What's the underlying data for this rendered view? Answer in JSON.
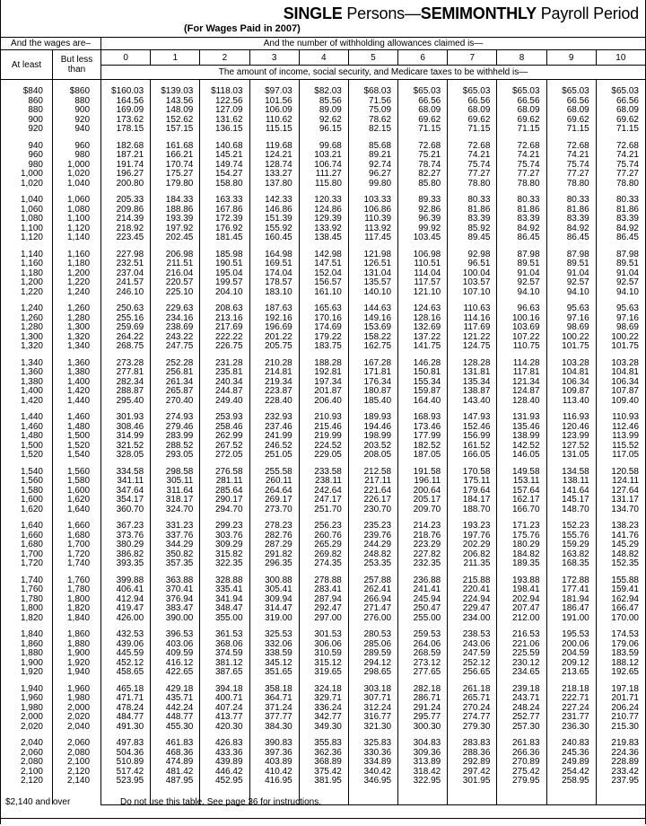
{
  "header": {
    "title_bold_1": "SINGLE",
    "title_plain_1": " Persons—",
    "title_bold_2": "SEMIMONTHLY",
    "title_plain_2": " Payroll Period",
    "subtitle": "(For Wages Paid in 2007)"
  },
  "table": {
    "wages_header": "And the wages are–",
    "allowances_header": "And the number of withholding allowances claimed is—",
    "at_least": "At least",
    "but_less_than": "But less than",
    "allowances": [
      "0",
      "1",
      "2",
      "3",
      "4",
      "5",
      "6",
      "7",
      "8",
      "9",
      "10"
    ],
    "amount_header": "The amount of income, social security, and Medicare taxes to be withheld is—",
    "rows": [
      [
        "$840",
        "$860",
        "$160.03",
        "$139.03",
        "$118.03",
        "$97.03",
        "$82.03",
        "$68.03",
        "$65.03",
        "$65.03",
        "$65.03",
        "$65.03",
        "$65.03"
      ],
      [
        "860",
        "880",
        "164.56",
        "143.56",
        "122.56",
        "101.56",
        "85.56",
        "71.56",
        "66.56",
        "66.56",
        "66.56",
        "66.56",
        "66.56"
      ],
      [
        "880",
        "900",
        "169.09",
        "148.09",
        "127.09",
        "106.09",
        "89.09",
        "75.09",
        "68.09",
        "68.09",
        "68.09",
        "68.09",
        "68.09"
      ],
      [
        "900",
        "920",
        "173.62",
        "152.62",
        "131.62",
        "110.62",
        "92.62",
        "78.62",
        "69.62",
        "69.62",
        "69.62",
        "69.62",
        "69.62"
      ],
      [
        "920",
        "940",
        "178.15",
        "157.15",
        "136.15",
        "115.15",
        "96.15",
        "82.15",
        "71.15",
        "71.15",
        "71.15",
        "71.15",
        "71.15"
      ],
      [
        "940",
        "960",
        "182.68",
        "161.68",
        "140.68",
        "119.68",
        "99.68",
        "85.68",
        "72.68",
        "72.68",
        "72.68",
        "72.68",
        "72.68"
      ],
      [
        "960",
        "980",
        "187.21",
        "166.21",
        "145.21",
        "124.21",
        "103.21",
        "89.21",
        "75.21",
        "74.21",
        "74.21",
        "74.21",
        "74.21"
      ],
      [
        "980",
        "1,000",
        "191.74",
        "170.74",
        "149.74",
        "128.74",
        "106.74",
        "92.74",
        "78.74",
        "75.74",
        "75.74",
        "75.74",
        "75.74"
      ],
      [
        "1,000",
        "1,020",
        "196.27",
        "175.27",
        "154.27",
        "133.27",
        "111.27",
        "96.27",
        "82.27",
        "77.27",
        "77.27",
        "77.27",
        "77.27"
      ],
      [
        "1,020",
        "1,040",
        "200.80",
        "179.80",
        "158.80",
        "137.80",
        "115.80",
        "99.80",
        "85.80",
        "78.80",
        "78.80",
        "78.80",
        "78.80"
      ],
      [
        "1,040",
        "1,060",
        "205.33",
        "184.33",
        "163.33",
        "142.33",
        "120.33",
        "103.33",
        "89.33",
        "80.33",
        "80.33",
        "80.33",
        "80.33"
      ],
      [
        "1,060",
        "1,080",
        "209.86",
        "188.86",
        "167.86",
        "146.86",
        "124.86",
        "106.86",
        "92.86",
        "81.86",
        "81.86",
        "81.86",
        "81.86"
      ],
      [
        "1,080",
        "1,100",
        "214.39",
        "193.39",
        "172.39",
        "151.39",
        "129.39",
        "110.39",
        "96.39",
        "83.39",
        "83.39",
        "83.39",
        "83.39"
      ],
      [
        "1,100",
        "1,120",
        "218.92",
        "197.92",
        "176.92",
        "155.92",
        "133.92",
        "113.92",
        "99.92",
        "85.92",
        "84.92",
        "84.92",
        "84.92"
      ],
      [
        "1,120",
        "1,140",
        "223.45",
        "202.45",
        "181.45",
        "160.45",
        "138.45",
        "117.45",
        "103.45",
        "89.45",
        "86.45",
        "86.45",
        "86.45"
      ],
      [
        "1,140",
        "1,160",
        "227.98",
        "206.98",
        "185.98",
        "164.98",
        "142.98",
        "121.98",
        "106.98",
        "92.98",
        "87.98",
        "87.98",
        "87.98"
      ],
      [
        "1,160",
        "1,180",
        "232.51",
        "211.51",
        "190.51",
        "169.51",
        "147.51",
        "126.51",
        "110.51",
        "96.51",
        "89.51",
        "89.51",
        "89.51"
      ],
      [
        "1,180",
        "1,200",
        "237.04",
        "216.04",
        "195.04",
        "174.04",
        "152.04",
        "131.04",
        "114.04",
        "100.04",
        "91.04",
        "91.04",
        "91.04"
      ],
      [
        "1,200",
        "1,220",
        "241.57",
        "220.57",
        "199.57",
        "178.57",
        "156.57",
        "135.57",
        "117.57",
        "103.57",
        "92.57",
        "92.57",
        "92.57"
      ],
      [
        "1,220",
        "1,240",
        "246.10",
        "225.10",
        "204.10",
        "183.10",
        "161.10",
        "140.10",
        "121.10",
        "107.10",
        "94.10",
        "94.10",
        "94.10"
      ],
      [
        "1,240",
        "1,260",
        "250.63",
        "229.63",
        "208.63",
        "187.63",
        "165.63",
        "144.63",
        "124.63",
        "110.63",
        "96.63",
        "95.63",
        "95.63"
      ],
      [
        "1,260",
        "1,280",
        "255.16",
        "234.16",
        "213.16",
        "192.16",
        "170.16",
        "149.16",
        "128.16",
        "114.16",
        "100.16",
        "97.16",
        "97.16"
      ],
      [
        "1,280",
        "1,300",
        "259.69",
        "238.69",
        "217.69",
        "196.69",
        "174.69",
        "153.69",
        "132.69",
        "117.69",
        "103.69",
        "98.69",
        "98.69"
      ],
      [
        "1,300",
        "1,320",
        "264.22",
        "243.22",
        "222.22",
        "201.22",
        "179.22",
        "158.22",
        "137.22",
        "121.22",
        "107.22",
        "100.22",
        "100.22"
      ],
      [
        "1,320",
        "1,340",
        "268.75",
        "247.75",
        "226.75",
        "205.75",
        "183.75",
        "162.75",
        "141.75",
        "124.75",
        "110.75",
        "101.75",
        "101.75"
      ],
      [
        "1,340",
        "1,360",
        "273.28",
        "252.28",
        "231.28",
        "210.28",
        "188.28",
        "167.28",
        "146.28",
        "128.28",
        "114.28",
        "103.28",
        "103.28"
      ],
      [
        "1,360",
        "1,380",
        "277.81",
        "256.81",
        "235.81",
        "214.81",
        "192.81",
        "171.81",
        "150.81",
        "131.81",
        "117.81",
        "104.81",
        "104.81"
      ],
      [
        "1,380",
        "1,400",
        "282.34",
        "261.34",
        "240.34",
        "219.34",
        "197.34",
        "176.34",
        "155.34",
        "135.34",
        "121.34",
        "106.34",
        "106.34"
      ],
      [
        "1,400",
        "1,420",
        "288.87",
        "265.87",
        "244.87",
        "223.87",
        "201.87",
        "180.87",
        "159.87",
        "138.87",
        "124.87",
        "109.87",
        "107.87"
      ],
      [
        "1,420",
        "1,440",
        "295.40",
        "270.40",
        "249.40",
        "228.40",
        "206.40",
        "185.40",
        "164.40",
        "143.40",
        "128.40",
        "113.40",
        "109.40"
      ],
      [
        "1,440",
        "1,460",
        "301.93",
        "274.93",
        "253.93",
        "232.93",
        "210.93",
        "189.93",
        "168.93",
        "147.93",
        "131.93",
        "116.93",
        "110.93"
      ],
      [
        "1,460",
        "1,480",
        "308.46",
        "279.46",
        "258.46",
        "237.46",
        "215.46",
        "194.46",
        "173.46",
        "152.46",
        "135.46",
        "120.46",
        "112.46"
      ],
      [
        "1,480",
        "1,500",
        "314.99",
        "283.99",
        "262.99",
        "241.99",
        "219.99",
        "198.99",
        "177.99",
        "156.99",
        "138.99",
        "123.99",
        "113.99"
      ],
      [
        "1,500",
        "1,520",
        "321.52",
        "288.52",
        "267.52",
        "246.52",
        "224.52",
        "203.52",
        "182.52",
        "161.52",
        "142.52",
        "127.52",
        "115.52"
      ],
      [
        "1,520",
        "1,540",
        "328.05",
        "293.05",
        "272.05",
        "251.05",
        "229.05",
        "208.05",
        "187.05",
        "166.05",
        "146.05",
        "131.05",
        "117.05"
      ],
      [
        "1,540",
        "1,560",
        "334.58",
        "298.58",
        "276.58",
        "255.58",
        "233.58",
        "212.58",
        "191.58",
        "170.58",
        "149.58",
        "134.58",
        "120.58"
      ],
      [
        "1,560",
        "1,580",
        "341.11",
        "305.11",
        "281.11",
        "260.11",
        "238.11",
        "217.11",
        "196.11",
        "175.11",
        "153.11",
        "138.11",
        "124.11"
      ],
      [
        "1,580",
        "1,600",
        "347.64",
        "311.64",
        "285.64",
        "264.64",
        "242.64",
        "221.64",
        "200.64",
        "179.64",
        "157.64",
        "141.64",
        "127.64"
      ],
      [
        "1,600",
        "1,620",
        "354.17",
        "318.17",
        "290.17",
        "269.17",
        "247.17",
        "226.17",
        "205.17",
        "184.17",
        "162.17",
        "145.17",
        "131.17"
      ],
      [
        "1,620",
        "1,640",
        "360.70",
        "324.70",
        "294.70",
        "273.70",
        "251.70",
        "230.70",
        "209.70",
        "188.70",
        "166.70",
        "148.70",
        "134.70"
      ],
      [
        "1,640",
        "1,660",
        "367.23",
        "331.23",
        "299.23",
        "278.23",
        "256.23",
        "235.23",
        "214.23",
        "193.23",
        "171.23",
        "152.23",
        "138.23"
      ],
      [
        "1,660",
        "1,680",
        "373.76",
        "337.76",
        "303.76",
        "282.76",
        "260.76",
        "239.76",
        "218.76",
        "197.76",
        "175.76",
        "155.76",
        "141.76"
      ],
      [
        "1,680",
        "1,700",
        "380.29",
        "344.29",
        "309.29",
        "287.29",
        "265.29",
        "244.29",
        "223.29",
        "202.29",
        "180.29",
        "159.29",
        "145.29"
      ],
      [
        "1,700",
        "1,720",
        "386.82",
        "350.82",
        "315.82",
        "291.82",
        "269.82",
        "248.82",
        "227.82",
        "206.82",
        "184.82",
        "163.82",
        "148.82"
      ],
      [
        "1,720",
        "1,740",
        "393.35",
        "357.35",
        "322.35",
        "296.35",
        "274.35",
        "253.35",
        "232.35",
        "211.35",
        "189.35",
        "168.35",
        "152.35"
      ],
      [
        "1,740",
        "1,760",
        "399.88",
        "363.88",
        "328.88",
        "300.88",
        "278.88",
        "257.88",
        "236.88",
        "215.88",
        "193.88",
        "172.88",
        "155.88"
      ],
      [
        "1,760",
        "1,780",
        "406.41",
        "370.41",
        "335.41",
        "305.41",
        "283.41",
        "262.41",
        "241.41",
        "220.41",
        "198.41",
        "177.41",
        "159.41"
      ],
      [
        "1,780",
        "1,800",
        "412.94",
        "376.94",
        "341.94",
        "309.94",
        "287.94",
        "266.94",
        "245.94",
        "224.94",
        "202.94",
        "181.94",
        "162.94"
      ],
      [
        "1,800",
        "1,820",
        "419.47",
        "383.47",
        "348.47",
        "314.47",
        "292.47",
        "271.47",
        "250.47",
        "229.47",
        "207.47",
        "186.47",
        "166.47"
      ],
      [
        "1,820",
        "1,840",
        "426.00",
        "390.00",
        "355.00",
        "319.00",
        "297.00",
        "276.00",
        "255.00",
        "234.00",
        "212.00",
        "191.00",
        "170.00"
      ],
      [
        "1,840",
        "1,860",
        "432.53",
        "396.53",
        "361.53",
        "325.53",
        "301.53",
        "280.53",
        "259.53",
        "238.53",
        "216.53",
        "195.53",
        "174.53"
      ],
      [
        "1,860",
        "1,880",
        "439.06",
        "403.06",
        "368.06",
        "332.06",
        "306.06",
        "285.06",
        "264.06",
        "243.06",
        "221.06",
        "200.06",
        "179.06"
      ],
      [
        "1,880",
        "1,900",
        "445.59",
        "409.59",
        "374.59",
        "338.59",
        "310.59",
        "289.59",
        "268.59",
        "247.59",
        "225.59",
        "204.59",
        "183.59"
      ],
      [
        "1,900",
        "1,920",
        "452.12",
        "416.12",
        "381.12",
        "345.12",
        "315.12",
        "294.12",
        "273.12",
        "252.12",
        "230.12",
        "209.12",
        "188.12"
      ],
      [
        "1,920",
        "1,940",
        "458.65",
        "422.65",
        "387.65",
        "351.65",
        "319.65",
        "298.65",
        "277.65",
        "256.65",
        "234.65",
        "213.65",
        "192.65"
      ],
      [
        "1,940",
        "1,960",
        "465.18",
        "429.18",
        "394.18",
        "358.18",
        "324.18",
        "303.18",
        "282.18",
        "261.18",
        "239.18",
        "218.18",
        "197.18"
      ],
      [
        "1,960",
        "1,980",
        "471.71",
        "435.71",
        "400.71",
        "364.71",
        "329.71",
        "307.71",
        "286.71",
        "265.71",
        "243.71",
        "222.71",
        "201.71"
      ],
      [
        "1,980",
        "2,000",
        "478.24",
        "442.24",
        "407.24",
        "371.24",
        "336.24",
        "312.24",
        "291.24",
        "270.24",
        "248.24",
        "227.24",
        "206.24"
      ],
      [
        "2,000",
        "2,020",
        "484.77",
        "448.77",
        "413.77",
        "377.77",
        "342.77",
        "316.77",
        "295.77",
        "274.77",
        "252.77",
        "231.77",
        "210.77"
      ],
      [
        "2,020",
        "2,040",
        "491.30",
        "455.30",
        "420.30",
        "384.30",
        "349.30",
        "321.30",
        "300.30",
        "279.30",
        "257.30",
        "236.30",
        "215.30"
      ],
      [
        "2,040",
        "2,060",
        "497.83",
        "461.83",
        "426.83",
        "390.83",
        "355.83",
        "325.83",
        "304.83",
        "283.83",
        "261.83",
        "240.83",
        "219.83"
      ],
      [
        "2,060",
        "2,080",
        "504.36",
        "468.36",
        "433.36",
        "397.36",
        "362.36",
        "330.36",
        "309.36",
        "288.36",
        "266.36",
        "245.36",
        "224.36"
      ],
      [
        "2,080",
        "2,100",
        "510.89",
        "474.89",
        "439.89",
        "403.89",
        "368.89",
        "334.89",
        "313.89",
        "292.89",
        "270.89",
        "249.89",
        "228.89"
      ],
      [
        "2,100",
        "2,120",
        "517.42",
        "481.42",
        "446.42",
        "410.42",
        "375.42",
        "340.42",
        "318.42",
        "297.42",
        "275.42",
        "254.42",
        "233.42"
      ],
      [
        "2,120",
        "2,140",
        "523.95",
        "487.95",
        "452.95",
        "416.95",
        "381.95",
        "346.95",
        "322.95",
        "301.95",
        "279.95",
        "258.95",
        "237.95"
      ]
    ]
  },
  "footer": {
    "over_label": "$2,140 and over",
    "note": "Do not use this table. See page 36 for instructions."
  }
}
